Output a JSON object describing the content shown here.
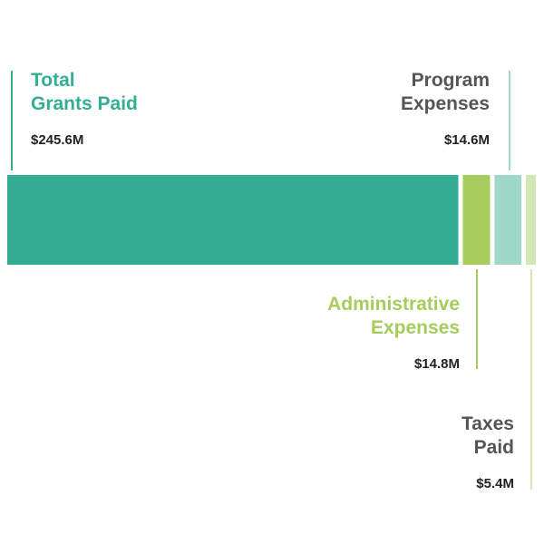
{
  "chart_data": {
    "type": "bar",
    "orientation": "horizontal-stacked",
    "title": "",
    "xlabel": "",
    "ylabel": "",
    "categories": [
      "Total Grants Paid",
      "Administrative Expenses",
      "Program Expenses",
      "Taxes Paid"
    ],
    "series": [
      {
        "category": "Total Grants Paid",
        "label_lines": [
          "Total",
          "Grants Paid"
        ],
        "value": 245.6,
        "value_label": "$245.6M",
        "color": "#33ae92",
        "label_color": "#33ae92",
        "label_position": "above-left"
      },
      {
        "category": "Administrative Expenses",
        "label_lines": [
          "Administrative",
          "Expenses"
        ],
        "value": 14.8,
        "value_label": "$14.8M",
        "color": "#a6cc5b",
        "label_color": "#a6cc5b",
        "label_position": "below"
      },
      {
        "category": "Program Expenses",
        "label_lines": [
          "Program",
          "Expenses"
        ],
        "value": 14.6,
        "value_label": "$14.6M",
        "color": "#9ed8c8",
        "label_color": "#555555",
        "label_position": "above-right"
      },
      {
        "category": "Taxes Paid",
        "label_lines": [
          "Taxes",
          "Paid"
        ],
        "value": 5.4,
        "value_label": "$5.4M",
        "color": "#d2e7b2",
        "label_color": "#555555",
        "label_position": "below"
      }
    ],
    "grid": false,
    "legend": "none"
  }
}
